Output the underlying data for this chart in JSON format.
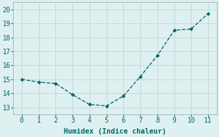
{
  "x": [
    0,
    1,
    2,
    3,
    4,
    5,
    6,
    7,
    8,
    9,
    10,
    11
  ],
  "y": [
    15.0,
    14.8,
    14.7,
    13.9,
    13.2,
    13.1,
    13.8,
    15.2,
    16.7,
    18.5,
    18.6,
    19.7
  ],
  "line_color": "#006868",
  "marker": "D",
  "marker_size": 2.5,
  "marker_color": "#006868",
  "background_color": "#dff0f0",
  "grid_color": "#c0dada",
  "xlabel": "Humidex (Indice chaleur)",
  "xlabel_fontsize": 7.5,
  "xlim": [
    -0.5,
    11.5
  ],
  "ylim": [
    12.5,
    20.5
  ],
  "yticks": [
    13,
    14,
    15,
    16,
    17,
    18,
    19,
    20
  ],
  "xticks": [
    0,
    1,
    2,
    3,
    4,
    5,
    6,
    7,
    8,
    9,
    10,
    11
  ],
  "tick_fontsize": 7,
  "line_width": 1.0,
  "line_style": "--"
}
